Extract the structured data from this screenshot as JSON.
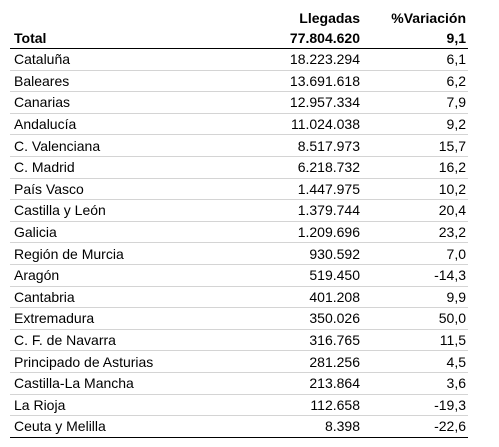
{
  "header": {
    "col_region": "",
    "col_arrivals": "Llegadas",
    "col_variation": "%Variación"
  },
  "total": {
    "label": "Total",
    "arrivals": "77.804.620",
    "variation": "9,1"
  },
  "rows": [
    {
      "region": "Cataluña",
      "arrivals": "18.223.294",
      "variation": "6,1"
    },
    {
      "region": "Baleares",
      "arrivals": "13.691.618",
      "variation": "6,2"
    },
    {
      "region": "Canarias",
      "arrivals": "12.957.334",
      "variation": "7,9"
    },
    {
      "region": "Andalucía",
      "arrivals": "11.024.038",
      "variation": "9,2"
    },
    {
      "region": "C. Valenciana",
      "arrivals": "8.517.973",
      "variation": "15,7"
    },
    {
      "region": "C. Madrid",
      "arrivals": "6.218.732",
      "variation": "16,2"
    },
    {
      "region": "País Vasco",
      "arrivals": "1.447.975",
      "variation": "10,2"
    },
    {
      "region": "Castilla y León",
      "arrivals": "1.379.744",
      "variation": "20,4"
    },
    {
      "region": "Galicia",
      "arrivals": "1.209.696",
      "variation": "23,2"
    },
    {
      "region": "Región de Murcia",
      "arrivals": "930.592",
      "variation": "7,0"
    },
    {
      "region": "Aragón",
      "arrivals": "519.450",
      "variation": "-14,3"
    },
    {
      "region": "Cantabria",
      "arrivals": "401.208",
      "variation": "9,9"
    },
    {
      "region": "Extremadura",
      "arrivals": "350.026",
      "variation": "50,0"
    },
    {
      "region": "C. F. de Navarra",
      "arrivals": "316.765",
      "variation": "11,5"
    },
    {
      "region": "Principado de Asturias",
      "arrivals": "281.256",
      "variation": "4,5"
    },
    {
      "region": "Castilla-La Mancha",
      "arrivals": "213.864",
      "variation": "3,6"
    },
    {
      "region": "La Rioja",
      "arrivals": "112.658",
      "variation": "-19,3"
    },
    {
      "region": "Ceuta y Melilla",
      "arrivals": "8.398",
      "variation": "-22,6"
    }
  ]
}
